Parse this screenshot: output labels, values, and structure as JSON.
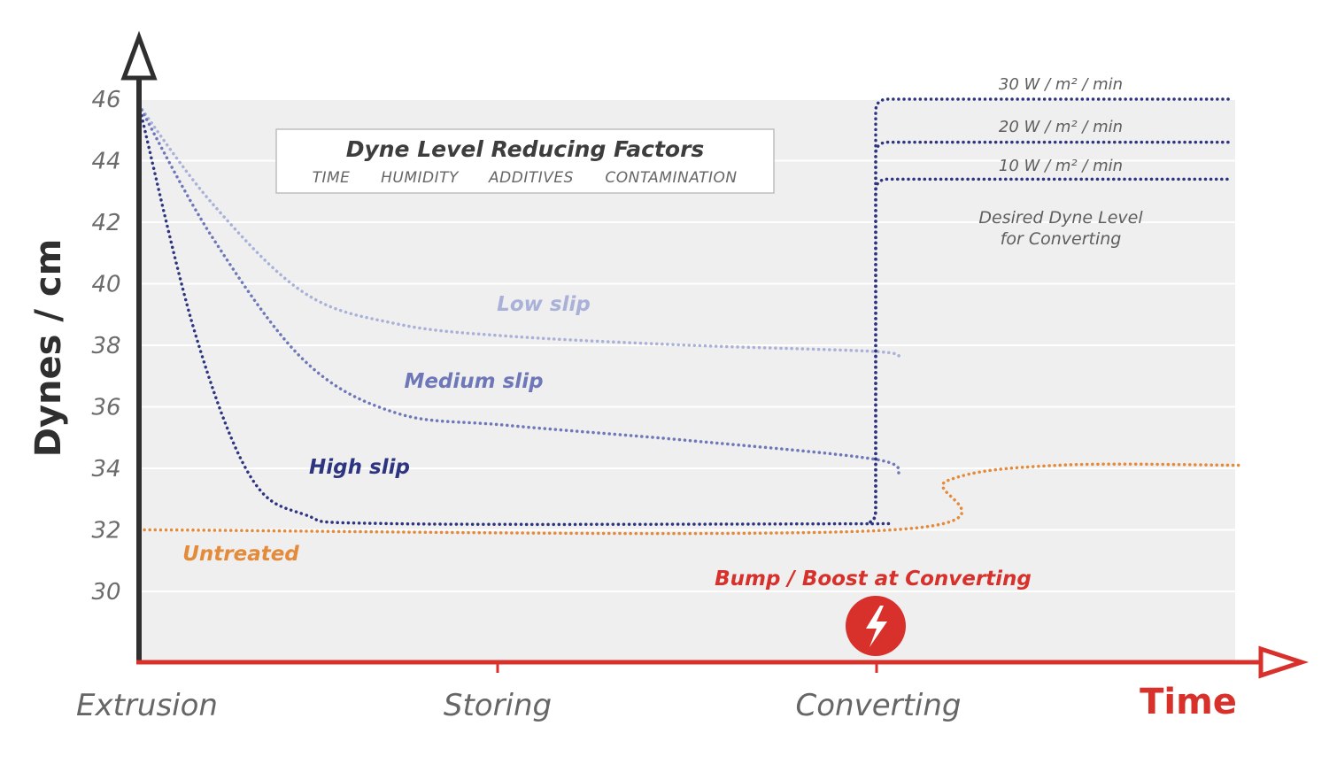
{
  "chart_data": {
    "type": "line",
    "title": "",
    "ylabel": "Dynes / cm",
    "xlabel": "Time",
    "ylim": [
      28,
      46
    ],
    "y_ticks": [
      "46",
      "44",
      "42",
      "40",
      "38",
      "36",
      "34",
      "32",
      "30"
    ],
    "x_categories": [
      "Extrusion",
      "Storing",
      "Converting"
    ],
    "grid": true,
    "legend": "none",
    "factors_box": {
      "title": "Dyne Level Reducing Factors",
      "items": [
        "TIME",
        "HUMIDITY",
        "ADDITIVES",
        "CONTAMINATION"
      ]
    },
    "series": [
      {
        "name": "Low slip",
        "color": "#a9b1d8",
        "points": [
          [
            0,
            45.8
          ],
          [
            0.2,
            42.6
          ],
          [
            0.45,
            39.7
          ],
          [
            0.7,
            38.7
          ],
          [
            1.0,
            38.3
          ],
          [
            1.5,
            38.0
          ],
          [
            2.0,
            37.8
          ],
          [
            2.07,
            37.6
          ]
        ]
      },
      {
        "name": "Medium slip",
        "color": "#6e78b8",
        "points": [
          [
            0,
            45.8
          ],
          [
            0.2,
            41.5
          ],
          [
            0.45,
            37.5
          ],
          [
            0.7,
            35.8
          ],
          [
            1.0,
            35.4
          ],
          [
            1.5,
            34.9
          ],
          [
            2.0,
            34.3
          ],
          [
            2.07,
            33.8
          ]
        ]
      },
      {
        "name": "High slip",
        "color": "#2e3580",
        "points": [
          [
            0,
            45.8
          ],
          [
            0.15,
            38.5
          ],
          [
            0.3,
            33.8
          ],
          [
            0.45,
            32.5
          ],
          [
            0.7,
            32.2
          ],
          [
            2.05,
            32.2
          ]
        ]
      },
      {
        "name": "Untreated",
        "color": "#e38a3b",
        "points": [
          [
            0,
            32.0
          ],
          [
            2.05,
            32.0
          ],
          [
            2.2,
            33.6
          ],
          [
            2.5,
            34.1
          ],
          [
            3.0,
            34.1
          ]
        ]
      }
    ],
    "treatment_levels": [
      {
        "label": "30 W / m² / min",
        "value": 46.0
      },
      {
        "label": "20 W / m² / min",
        "value": 44.6
      },
      {
        "label": "10 W / m² / min",
        "value": 43.4
      }
    ],
    "desired_level_note": [
      "Desired Dyne Level",
      "for Converting"
    ],
    "boost_label": "Bump / Boost at Converting",
    "colors": {
      "axis_y": "#2f2f2f",
      "axis_x": "#d8302a",
      "grid": "#ffffff",
      "plot_bg": "#efefef",
      "treatment": "#2e3580",
      "boost": "#d8302a"
    },
    "icons": {
      "boost": "lightning-bolt-icon"
    }
  }
}
